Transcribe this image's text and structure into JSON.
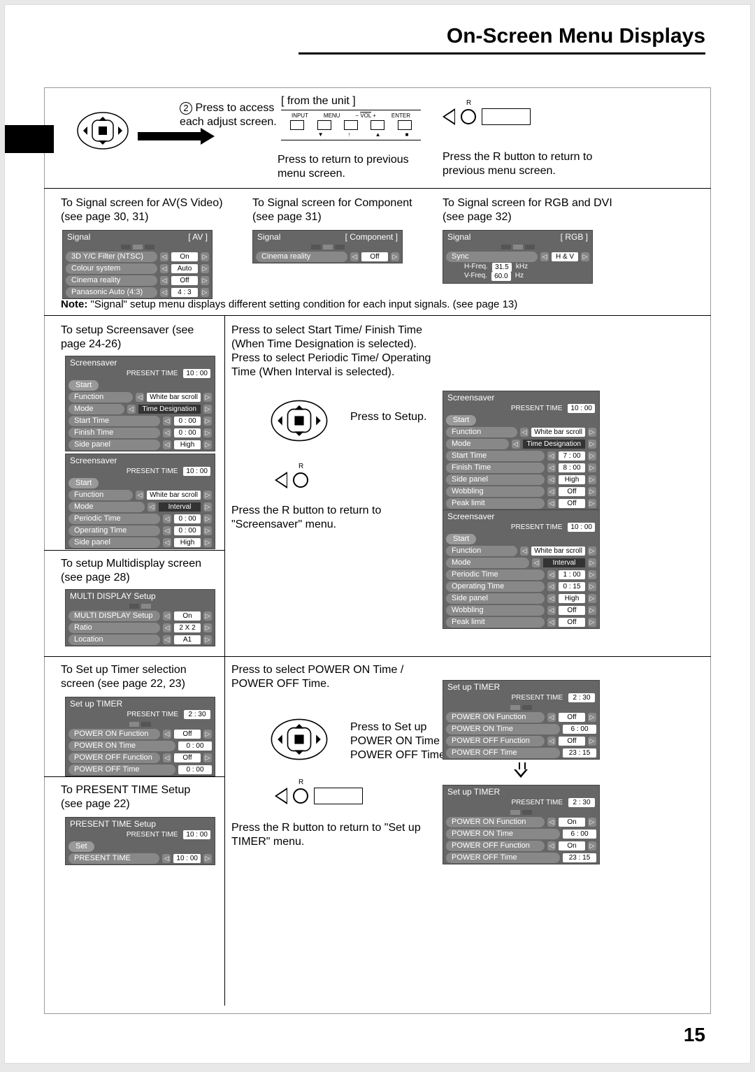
{
  "page": {
    "title": "On-Screen Menu Displays",
    "number": "15"
  },
  "intro": {
    "step2": "Press to access each adjust screen.",
    "from_unit": "[ from the unit ]",
    "return_prev": "Press to return to previous menu screen.",
    "r_return": "Press the R button to return to previous menu screen.",
    "panel_labels": {
      "input": "INPUT",
      "menu": "MENU",
      "vol": "VOL",
      "enter": "ENTER"
    }
  },
  "signal_section": {
    "av": {
      "heading": "To Signal screen for AV(S Video) (see page 30, 31)",
      "title": "Signal",
      "tag": "[  AV  ]",
      "rows": [
        {
          "label": "3D  Y/C  Filter  (NTSC)",
          "val": "On"
        },
        {
          "label": "Colour  system",
          "val": "Auto"
        },
        {
          "label": "Cinema  reality",
          "val": "Off"
        },
        {
          "label": "Panasonic  Auto  (4:3)",
          "val": "4 : 3"
        }
      ]
    },
    "component": {
      "heading": "To Signal screen for Component (see page 31)",
      "title": "Signal",
      "tag": "[  Component  ]",
      "rows": [
        {
          "label": "Cinema  reality",
          "val": "Off"
        }
      ]
    },
    "rgb": {
      "heading": "To Signal screen for RGB and DVI  (see page 32)",
      "title": "Signal",
      "tag": "[  RGB  ]",
      "rows": [
        {
          "label": "Sync",
          "val": "H & V"
        }
      ],
      "freq": [
        {
          "k": "H-Freq.",
          "v": "31.5",
          "u": "kHz"
        },
        {
          "k": "V-Freq.",
          "v": "60.0",
          "u": "Hz"
        }
      ]
    },
    "note": "Note: \"Signal\" setup menu displays different setting condition for each input signals. (see page 13)"
  },
  "screensaver": {
    "left_heading": "To setup Screensaver (see page 24-26)",
    "center_text1": "Press to select Start Time/ Finish Time (When Time Designation is selected).\nPress to select Periodic Time/ Operating Time (When Interval  is selected).",
    "press_setup": "Press to Setup.",
    "r_return": "Press the R button to return to \"Screensaver\" menu.",
    "left1": {
      "title": "Screensaver",
      "time_label": "PRESENT TIME",
      "time": "10 : 00",
      "start": "Start",
      "rows": [
        {
          "label": "Function",
          "val": "White bar scroll"
        },
        {
          "label": "Mode",
          "val": "Time Designation",
          "dark": true
        },
        {
          "label": "Start Time",
          "val": "0 : 00"
        },
        {
          "label": "Finish Time",
          "val": "0 : 00"
        },
        {
          "label": "Side  panel",
          "val": "High"
        }
      ]
    },
    "left2": {
      "title": "Screensaver",
      "time_label": "PRESENT TIME",
      "time": "10 : 00",
      "start": "Start",
      "rows": [
        {
          "label": "Function",
          "val": "White bar scroll"
        },
        {
          "label": "Mode",
          "val": "Interval",
          "dark": true
        },
        {
          "label": "Periodic Time",
          "val": "0 : 00"
        },
        {
          "label": "Operating Time",
          "val": "0 : 00"
        },
        {
          "label": "Side  panel",
          "val": "High"
        }
      ]
    },
    "right1": {
      "title": "Screensaver",
      "time_label": "PRESENT TIME",
      "time": "10 : 00",
      "start": "Start",
      "rows": [
        {
          "label": "Function",
          "val": "White bar scroll"
        },
        {
          "label": "Mode",
          "val": "Time Designation",
          "dark": true
        },
        {
          "label": "Start Time",
          "val": "7 : 00"
        },
        {
          "label": "Finish Time",
          "val": "8 : 00"
        },
        {
          "label": "Side  panel",
          "val": "High"
        },
        {
          "label": "Wobbling",
          "val": "Off"
        },
        {
          "label": "Peak limit",
          "val": "Off"
        }
      ]
    },
    "right2": {
      "title": "Screensaver",
      "time_label": "PRESENT TIME",
      "time": "10 : 00",
      "start": "Start",
      "rows": [
        {
          "label": "Function",
          "val": "White bar scroll"
        },
        {
          "label": "Mode",
          "val": "Interval",
          "dark": true
        },
        {
          "label": "Periodic Time",
          "val": "1 : 00"
        },
        {
          "label": "Operating Time",
          "val": "0 : 15"
        },
        {
          "label": "Side  panel",
          "val": "High"
        },
        {
          "label": "Wobbling",
          "val": "Off"
        },
        {
          "label": "Peak limit",
          "val": "Off"
        }
      ]
    }
  },
  "multidisplay": {
    "heading": "To setup Multidisplay screen (see page 28)",
    "title": "MULTI DISPLAY Setup",
    "rows": [
      {
        "label": "MULTI DISPLAY Setup",
        "val": "On"
      },
      {
        "label": "Ratio",
        "val": "2 X 2"
      },
      {
        "label": "Location",
        "val": "A1"
      }
    ]
  },
  "timer": {
    "left_heading": "To Set up Timer selection screen (see page 22, 23)",
    "center_text": "Press to select POWER ON Time / POWER OFF Time.",
    "press_setup": "Press to Set up POWER ON Time / POWER OFF Time.",
    "r_return": "Press the R button to return to \"Set up TIMER\" menu.",
    "left_osd": {
      "title": "Set up TIMER",
      "time_label": "PRESENT TIME",
      "time": "2 : 30",
      "rows": [
        {
          "label": "POWER ON Function",
          "val": "Off"
        },
        {
          "label": "POWER ON Time",
          "val": "0 : 00",
          "noarrow": true
        },
        {
          "label": "POWER OFF Function",
          "val": "Off"
        },
        {
          "label": "POWER OFF Time",
          "val": "0 : 00",
          "noarrow": true
        }
      ]
    },
    "right_osd1": {
      "title": "Set up TIMER",
      "time_label": "PRESENT TIME",
      "time": "2 : 30",
      "rows": [
        {
          "label": "POWER ON Function",
          "val": "Off"
        },
        {
          "label": "POWER ON Time",
          "val": "6 : 00",
          "noarrow": true
        },
        {
          "label": "POWER OFF Function",
          "val": "Off"
        },
        {
          "label": "POWER OFF Time",
          "val": "23 : 15",
          "noarrow": true
        }
      ]
    },
    "right_osd2": {
      "title": "Set up TIMER",
      "time_label": "PRESENT TIME",
      "time": "2 : 30",
      "rows": [
        {
          "label": "POWER ON Function",
          "val": "On"
        },
        {
          "label": "POWER ON Time",
          "val": "6 : 00",
          "noarrow": true
        },
        {
          "label": "POWER OFF Function",
          "val": "On"
        },
        {
          "label": "POWER OFF Time",
          "val": "23 : 15",
          "noarrow": true
        }
      ]
    }
  },
  "present_time": {
    "heading": "To PRESENT TIME Setup (see page 22)",
    "title": "PRESENT TIME Setup",
    "time_label": "PRESENT TIME",
    "time": "10 : 00",
    "set": "Set",
    "rows": [
      {
        "label": "PRESENT TIME",
        "val": "10 : 00"
      }
    ]
  }
}
